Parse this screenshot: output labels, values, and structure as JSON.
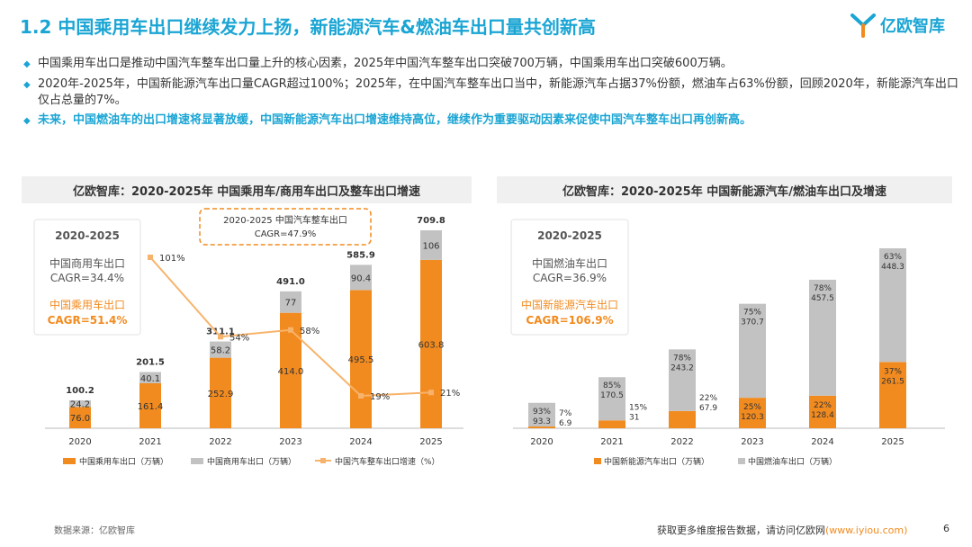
{
  "title": "1.2 中国乘用车出口继续发力上扬，新能源汽车&燃油车出口量共创新高",
  "logo": {
    "text": "亿欧智库"
  },
  "bullets": [
    "中国乘用车出口是推动中国汽车整车出口量上升的核心因素，2025年中国汽车整车出口突破700万辆，中国乘用车出口突破600万辆。",
    "2020年-2025年，中国新能源汽车出口量CAGR超过100%；2025年，在中国汽车整车出口当中，新能源汽车占据37%份额，燃油车占63%份额，回顾2020年，新能源汽车出口仅占总量的7%。",
    "未来，中国燃油车的出口增速将显著放缓，中国新能源汽车出口增速维持高位，继续作为重要驱动因素来促使中国汽车整车出口再创新高。"
  ],
  "colors": {
    "orange": "#f28b1f",
    "gray": "#c2c2c2",
    "line": "#f7b36b",
    "accent": "#1aa5d4"
  },
  "chart1": {
    "header": "亿欧智库：2020-2025年 中国乘用车/商用车出口及整车出口增速",
    "cagr_period": "2020-2025",
    "cagr_commercial_label": "中国商用车出口",
    "cagr_commercial_value": "CAGR=34.4%",
    "cagr_passenger_label": "中国乘用车出口",
    "cagr_passenger_value": "CAGR=51.4%",
    "total_box_line1": "2020-2025 中国汽车整车出口",
    "total_box_line2": "CAGR=47.9%"
  },
  "chart2": {
    "header": "亿欧智库：2020-2025年 中国新能源汽车/燃油车出口及增速",
    "cagr_period": "2020-2025",
    "cagr_fuel_label": "中国燃油车出口",
    "cagr_fuel_value": "CAGR=36.9%",
    "cagr_nev_label": "中国新能源汽车出口",
    "cagr_nev_value": "CAGR=106.9%"
  },
  "chart_data": [
    {
      "type": "bar",
      "stacked": true,
      "title": "2020-2025年 中国乘用车/商用车出口及整车出口增速",
      "categories": [
        "2020",
        "2021",
        "2022",
        "2023",
        "2024",
        "2025"
      ],
      "series": [
        {
          "name": "中国乘用车出口（万辆）",
          "values": [
            76.0,
            161.4,
            252.9,
            414.0,
            495.5,
            603.8
          ],
          "labels": [
            "76.0",
            "161.4",
            "252.9",
            "414.0",
            "495.5",
            "603.8"
          ]
        },
        {
          "name": "中国商用车出口（万辆）",
          "values": [
            24.2,
            40.1,
            58.2,
            77,
            90.4,
            106
          ],
          "labels": [
            "24.2",
            "40.1",
            "58.2",
            "77",
            "90.4",
            "106"
          ]
        }
      ],
      "totals": [
        "100.2",
        "201.5",
        "311.1",
        "491.0",
        "585.9",
        "709.8"
      ],
      "line": {
        "name": "中国汽车整车出口增速（%）",
        "values": [
          null,
          101,
          54,
          58,
          19,
          21
        ],
        "labels": [
          "",
          "101%",
          "54%",
          "58%",
          "19%",
          "21%"
        ]
      },
      "ylim": [
        0,
        760
      ],
      "line_ylim": [
        0,
        120
      ],
      "legend": [
        "中国乘用车出口（万辆）",
        "中国商用车出口（万辆）",
        "中国汽车整车出口增速（%）"
      ]
    },
    {
      "type": "bar",
      "stacked": true,
      "title": "2020-2025年 中国新能源汽车/燃油车出口及增速",
      "categories": [
        "2020",
        "2021",
        "2022",
        "2023",
        "2024",
        "2025"
      ],
      "series": [
        {
          "name": "中国新能源汽车出口（万辆）",
          "values": [
            6.9,
            31,
            67.9,
            120.3,
            128.4,
            261.5
          ],
          "labels": [
            "6.9",
            "31",
            "67.9",
            "120.3",
            "128.4",
            "261.5"
          ],
          "shares": [
            "7%",
            "15%",
            "22%",
            "25%",
            "22%",
            "37%"
          ]
        },
        {
          "name": "中国燃油车出口（万辆）",
          "values": [
            93.3,
            170.5,
            243.2,
            370.7,
            457.5,
            448.3
          ],
          "labels": [
            "93.3",
            "170.5",
            "243.2",
            "370.7",
            "457.5",
            "448.3"
          ],
          "shares": [
            "93%",
            "85%",
            "78%",
            "75%",
            "78%",
            "63%"
          ]
        }
      ],
      "ylim": [
        0,
        760
      ],
      "legend": [
        "中国新能源汽车出口（万辆）",
        "中国燃油车出口（万辆）"
      ]
    }
  ],
  "footer": {
    "source": "数据来源：亿欧智库",
    "more_text": "获取更多维度报告数据，请访问亿欧网",
    "url": "(www.iyiou.com)",
    "page": "6"
  }
}
